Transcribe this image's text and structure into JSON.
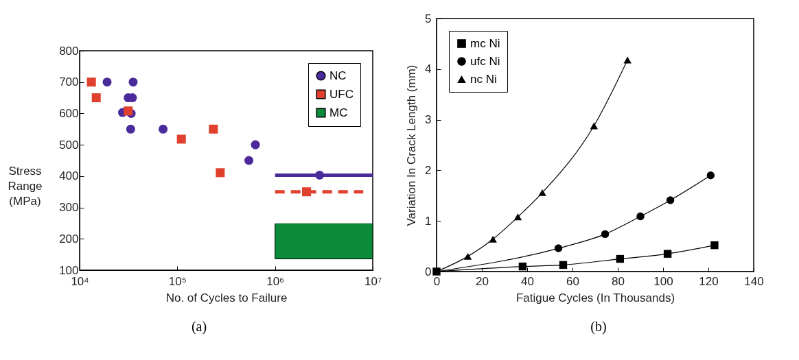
{
  "chart_data": [
    {
      "type": "scatter",
      "xlabel": "No. of Cycles to Failure",
      "ylabel": "Stress Range (MPa)",
      "log": "x",
      "xlim": [
        10000,
        10000000
      ],
      "xticks": [
        {
          "value": 10000,
          "label": "10⁴"
        },
        {
          "value": 100000,
          "label": "10⁵"
        },
        {
          "value": 1000000,
          "label": "10⁶"
        },
        {
          "value": 10000000,
          "label": "10⁷"
        }
      ],
      "ylim": [
        100,
        800
      ],
      "yticks": [
        100,
        200,
        300,
        400,
        500,
        600,
        700,
        800
      ],
      "grid": false,
      "legend": "top right",
      "annotations": [
        "(a)"
      ],
      "series": [
        {
          "name": "NC",
          "marker": "circle",
          "color": "#4b2a9c",
          "x": [
            19100,
            27500,
            31400,
            34700,
            33700,
            35300,
            33300,
            71500,
            540000,
            630000,
            2860000
          ],
          "values": [
            700,
            603,
            650,
            650,
            600,
            700,
            550,
            550,
            450,
            500,
            403
          ]
        },
        {
          "name": "UFC",
          "marker": "square",
          "color": "#e0412e",
          "x": [
            13200,
            14800,
            31400,
            110000,
            234000,
            275000,
            2100000
          ],
          "values": [
            700,
            650,
            608,
            518,
            550,
            411,
            350
          ]
        },
        {
          "type": "line",
          "line_style": "solid",
          "color": "#4b2a9c",
          "x": [
            1000000,
            10000000
          ],
          "values": [
            403,
            403
          ]
        },
        {
          "type": "line",
          "line_style": "dashed",
          "color": "#e0412e",
          "x": [
            1000000,
            8000000
          ],
          "values": [
            350,
            350
          ]
        },
        {
          "name": "MC",
          "type": "line",
          "line_style": "solid",
          "color": "#0b8a3a",
          "x": [
            1000000,
            10000000
          ],
          "values": [
            248,
            248
          ],
          "lower": [
            136,
            136
          ],
          "upper": [
            248,
            248
          ]
        }
      ]
    },
    {
      "type": "scatter",
      "xlabel": "Fatigue Cycles (In Thousands)",
      "ylabel": "Variation In Crack Length (mm)",
      "xlim": [
        0,
        140
      ],
      "xticks": [
        0,
        20,
        40,
        60,
        80,
        100,
        120,
        140
      ],
      "ylim": [
        0,
        5
      ],
      "yticks": [
        0,
        1,
        2,
        3,
        4,
        5
      ],
      "grid": false,
      "legend": "top left",
      "annotations": [
        "(b)"
      ],
      "series": [
        {
          "name": "mc Ni",
          "marker": "square",
          "color": "#000000",
          "x": [
            0,
            38,
            55.9,
            81,
            102,
            122.7
          ],
          "values": [
            0,
            0.1,
            0.13,
            0.25,
            0.35,
            0.52
          ]
        },
        {
          "name": "ufc Ni",
          "marker": "circle",
          "color": "#000000",
          "x": [
            53.8,
            74.4,
            90,
            103.2,
            121
          ],
          "values": [
            0.46,
            0.74,
            1.09,
            1.41,
            1.9
          ]
        },
        {
          "name": "nc Ni",
          "marker": "triangle",
          "color": "#000000",
          "x": [
            13.8,
            24.9,
            35.9,
            46.7,
            69.5,
            84.3
          ],
          "values": [
            0.3,
            0.64,
            1.08,
            1.56,
            2.88,
            4.18
          ]
        },
        {
          "type": "line",
          "line_style": "solid",
          "color": "#000000",
          "x": [
            0,
            38,
            55.9,
            81,
            102,
            122.7
          ],
          "values": [
            0,
            0.1,
            0.13,
            0.25,
            0.35,
            0.52
          ]
        },
        {
          "type": "line",
          "line_style": "solid",
          "color": "#000000",
          "x": [
            0,
            53.8,
            74.4,
            90,
            103.2,
            121
          ],
          "values": [
            0,
            0.46,
            0.74,
            1.09,
            1.41,
            1.9
          ]
        },
        {
          "type": "line",
          "line_style": "solid",
          "color": "#000000",
          "x": [
            0,
            13.8,
            24.9,
            35.9,
            46.7,
            69.5,
            84.3
          ],
          "values": [
            0,
            0.3,
            0.64,
            1.08,
            1.56,
            2.88,
            4.18
          ]
        }
      ]
    }
  ]
}
